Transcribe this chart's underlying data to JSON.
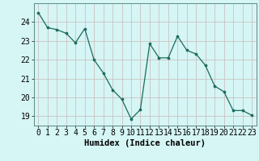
{
  "x": [
    0,
    1,
    2,
    3,
    4,
    5,
    6,
    7,
    8,
    9,
    10,
    11,
    12,
    13,
    14,
    15,
    16,
    17,
    18,
    19,
    20,
    21,
    22,
    23
  ],
  "y": [
    24.5,
    23.7,
    23.6,
    23.4,
    22.9,
    23.65,
    22.0,
    21.3,
    20.4,
    19.9,
    18.85,
    19.35,
    22.85,
    22.1,
    22.1,
    23.25,
    22.5,
    22.3,
    21.7,
    20.6,
    20.3,
    19.3,
    19.3,
    19.05
  ],
  "xlabel": "Humidex (Indice chaleur)",
  "line_color": "#1a6b5a",
  "marker_color": "#1a6b5a",
  "bg_color": "#d6f5f5",
  "grid_color": "#c9b8b8",
  "ylim": [
    18.5,
    25.0
  ],
  "xlim": [
    -0.5,
    23.5
  ],
  "yticks": [
    19,
    20,
    21,
    22,
    23,
    24
  ],
  "xtick_labels": [
    "0",
    "1",
    "2",
    "3",
    "4",
    "5",
    "6",
    "7",
    "8",
    "9",
    "10",
    "11",
    "12",
    "13",
    "14",
    "15",
    "16",
    "17",
    "18",
    "19",
    "20",
    "21",
    "22",
    "23"
  ],
  "xlabel_fontsize": 7.5,
  "tick_fontsize": 7
}
